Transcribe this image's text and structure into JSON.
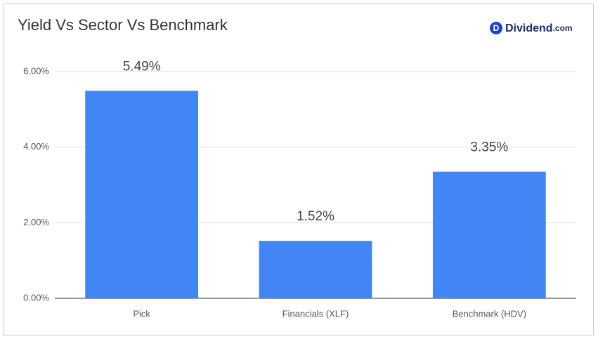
{
  "chart_data": {
    "type": "bar",
    "title": "Yield Vs Sector Vs Benchmark",
    "categories": [
      "Pick",
      "Financials (XLF)",
      "Benchmark (HDV)"
    ],
    "values": [
      5.49,
      1.52,
      3.35
    ],
    "value_labels": [
      "5.49%",
      "1.52%",
      "3.35%"
    ],
    "color": "#4285f4",
    "ylim": [
      0,
      6
    ],
    "yticks": [
      {
        "value": 0,
        "label": "0.00%"
      },
      {
        "value": 2,
        "label": "2.00%"
      },
      {
        "value": 4,
        "label": "4.00%"
      },
      {
        "value": 6,
        "label": "6.00%"
      }
    ],
    "grid": true
  },
  "logo": {
    "icon": "D",
    "name": "Dividend",
    "suffix": ".com"
  }
}
